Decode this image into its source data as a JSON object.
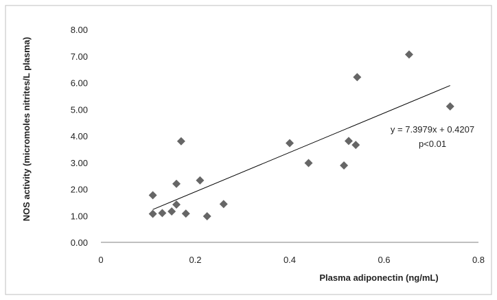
{
  "chart_data": {
    "type": "scatter",
    "title": "",
    "xlabel": "Plasma adiponectin (ng/mL)",
    "ylabel": "NOS activity (micromoles nitrites/L plasma)",
    "xlim": [
      0,
      0.8
    ],
    "ylim": [
      0,
      8
    ],
    "x_ticks": [
      "0",
      "0.2",
      "0.4",
      "0.6",
      "0.8"
    ],
    "y_ticks": [
      "0.00",
      "1.00",
      "2.00",
      "3.00",
      "4.00",
      "5.00",
      "6.00",
      "7.00",
      "8.00"
    ],
    "grid": false,
    "legend": "none",
    "marker_color": "#666666",
    "trendline": {
      "slope": 7.3979,
      "intercept": 0.4207,
      "x_range": [
        0.11,
        0.74
      ],
      "equation_label": "y = 7.3979x + 0.4207",
      "p_label": "p<0.01"
    },
    "points": [
      {
        "x": 0.11,
        "y": 1.77
      },
      {
        "x": 0.11,
        "y": 1.07
      },
      {
        "x": 0.13,
        "y": 1.1
      },
      {
        "x": 0.15,
        "y": 1.16
      },
      {
        "x": 0.16,
        "y": 2.2
      },
      {
        "x": 0.16,
        "y": 1.42
      },
      {
        "x": 0.17,
        "y": 3.8
      },
      {
        "x": 0.18,
        "y": 1.08
      },
      {
        "x": 0.21,
        "y": 2.33
      },
      {
        "x": 0.225,
        "y": 0.98
      },
      {
        "x": 0.26,
        "y": 1.44
      },
      {
        "x": 0.4,
        "y": 3.73
      },
      {
        "x": 0.44,
        "y": 2.98
      },
      {
        "x": 0.515,
        "y": 2.89
      },
      {
        "x": 0.525,
        "y": 3.81
      },
      {
        "x": 0.54,
        "y": 3.66
      },
      {
        "x": 0.543,
        "y": 6.21
      },
      {
        "x": 0.653,
        "y": 7.06
      },
      {
        "x": 0.74,
        "y": 5.11
      }
    ]
  }
}
